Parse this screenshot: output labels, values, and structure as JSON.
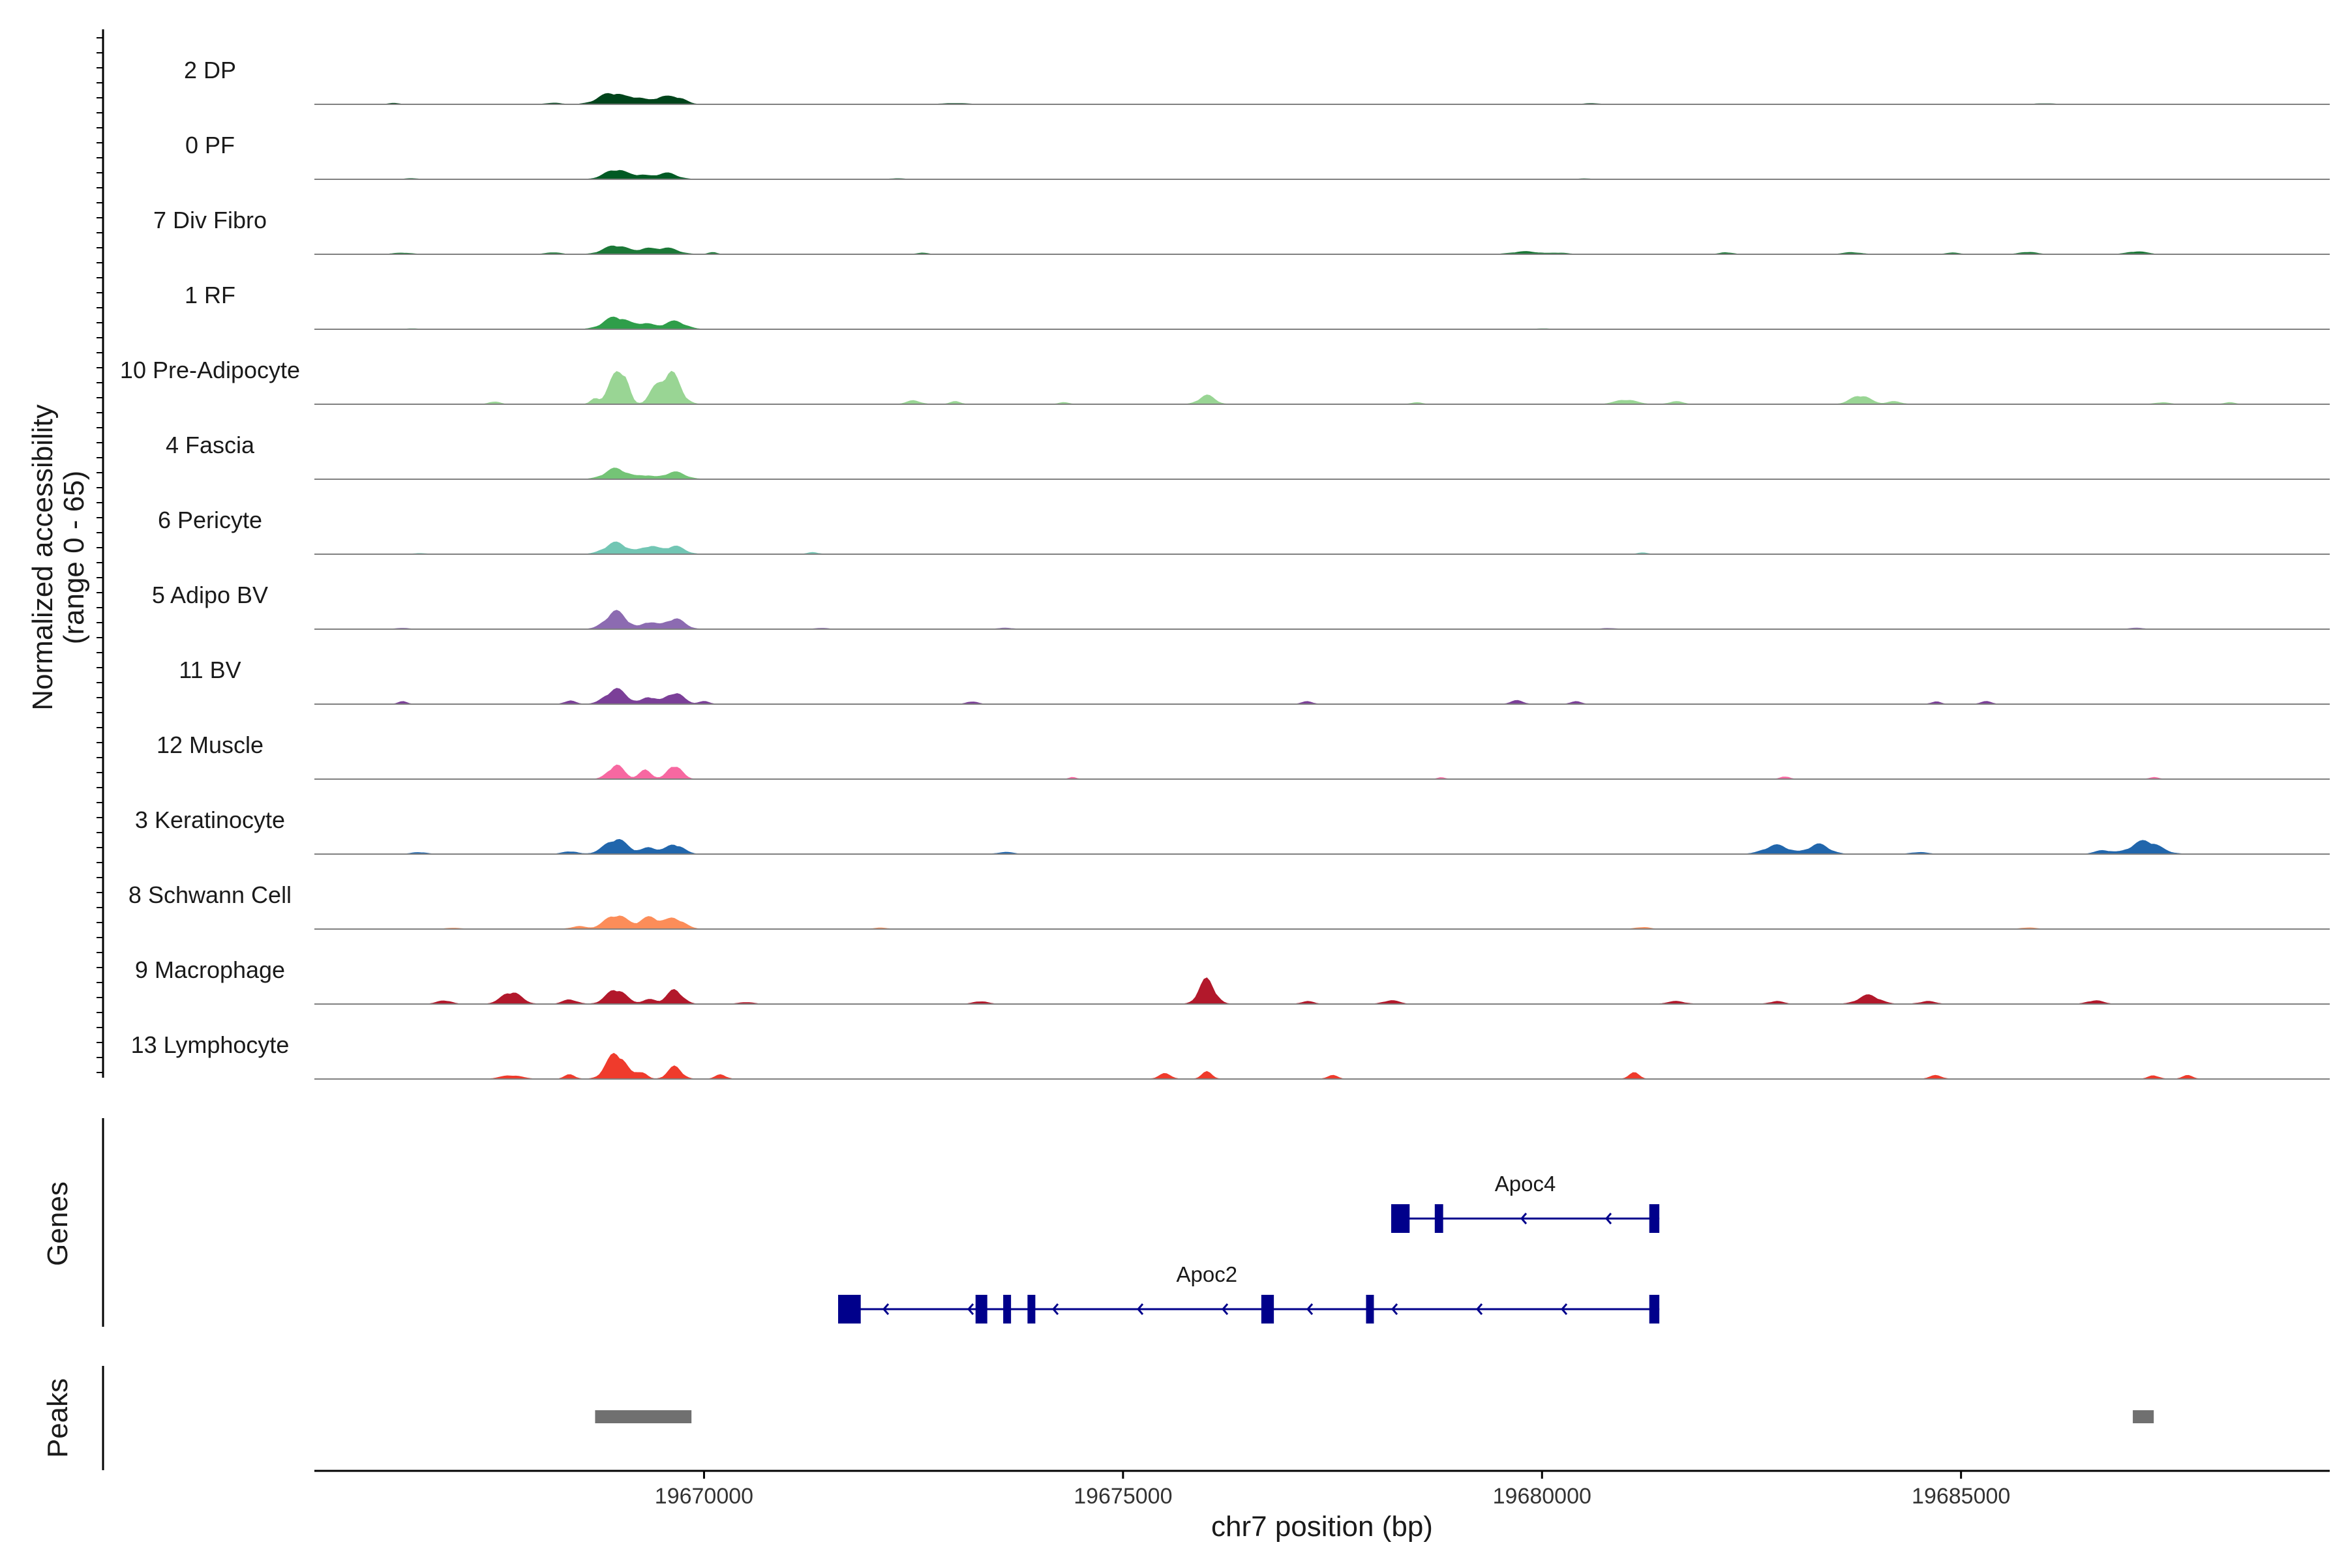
{
  "chart_data": {
    "type": "area",
    "title": "",
    "xlabel": "chr7 position (bp)",
    "ylabel": "Normalized accessibility",
    "ylabel_range": "(range 0 - 65)",
    "xlim": [
      19665350,
      19689400
    ],
    "ylim": [
      0,
      65
    ],
    "x_ticks": [
      19670000,
      19675000,
      19680000,
      19685000
    ],
    "x_tick_labels": [
      "19670000",
      "19675000",
      "19680000",
      "19685000"
    ],
    "tracks": [
      {
        "name": "2 DP",
        "color": "#00441b",
        "peaks": [
          [
            19668900,
            13,
            150
          ],
          [
            19669200,
            6,
            90
          ],
          [
            19669500,
            8,
            120
          ],
          [
            19669700,
            6,
            90
          ],
          [
            19666300,
            1.2,
            60
          ],
          [
            19668200,
            1.5,
            80
          ],
          [
            19673000,
            1,
            150
          ],
          [
            19680600,
            1,
            80
          ],
          [
            19686000,
            0.8,
            100
          ]
        ]
      },
      {
        "name": "0 PF",
        "color": "#005a24",
        "peaks": [
          [
            19668950,
            11,
            130
          ],
          [
            19669250,
            4,
            90
          ],
          [
            19669550,
            7,
            120
          ],
          [
            19666500,
            0.8,
            80
          ],
          [
            19672300,
            0.8,
            80
          ],
          [
            19680500,
            0.6,
            80
          ]
        ]
      },
      {
        "name": "7 Div Fibro",
        "color": "#1b7837",
        "peaks": [
          [
            19668950,
            10,
            140
          ],
          [
            19669300,
            5,
            90
          ],
          [
            19669550,
            7,
            130
          ],
          [
            19666400,
            1.5,
            100
          ],
          [
            19668200,
            2,
            80
          ],
          [
            19670100,
            2,
            50
          ],
          [
            19672600,
            1.5,
            60
          ],
          [
            19679800,
            3,
            150
          ],
          [
            19680200,
            1.5,
            100
          ],
          [
            19682200,
            2,
            70
          ],
          [
            19683700,
            2,
            100
          ],
          [
            19684900,
            1.5,
            80
          ],
          [
            19685800,
            2.5,
            90
          ],
          [
            19687100,
            3,
            110
          ]
        ]
      },
      {
        "name": "1 RF",
        "color": "#2f9e4a",
        "peaks": [
          [
            19668950,
            14,
            140
          ],
          [
            19669300,
            6,
            100
          ],
          [
            19669650,
            9,
            120
          ],
          [
            19666500,
            0.6,
            80
          ],
          [
            19680000,
            0.6,
            80
          ]
        ]
      },
      {
        "name": "10 Pre-Adipocyte",
        "color": "#99d594",
        "peaks": [
          [
            19668950,
            32,
            90
          ],
          [
            19669050,
            18,
            60
          ],
          [
            19669600,
            36,
            110
          ],
          [
            19669400,
            12,
            70
          ],
          [
            19668700,
            6,
            50
          ],
          [
            19667500,
            3,
            60
          ],
          [
            19672500,
            4,
            80
          ],
          [
            19673000,
            3,
            60
          ],
          [
            19676000,
            10,
            90
          ],
          [
            19681000,
            5,
            120
          ],
          [
            19681600,
            3,
            80
          ],
          [
            19683800,
            10,
            110
          ],
          [
            19684200,
            3,
            80
          ],
          [
            19687400,
            2,
            80
          ],
          [
            19688200,
            2,
            60
          ],
          [
            19674300,
            2,
            60
          ],
          [
            19678500,
            2,
            60
          ]
        ]
      },
      {
        "name": "4 Fascia",
        "color": "#74c476",
        "peaks": [
          [
            19668950,
            12,
            130
          ],
          [
            19669300,
            4,
            90
          ],
          [
            19669650,
            8,
            120
          ]
        ]
      },
      {
        "name": "6 Pericyte",
        "color": "#72c6b4",
        "peaks": [
          [
            19668950,
            13,
            130
          ],
          [
            19669350,
            9,
            100
          ],
          [
            19669650,
            9,
            110
          ],
          [
            19671300,
            2,
            60
          ],
          [
            19681200,
            1.5,
            60
          ],
          [
            19666600,
            0.8,
            80
          ]
        ]
      },
      {
        "name": "5 Adipo BV",
        "color": "#8c6bb1",
        "peaks": [
          [
            19668950,
            20,
            120
          ],
          [
            19669350,
            8,
            80
          ],
          [
            19669650,
            12,
            110
          ],
          [
            19666400,
            1,
            80
          ],
          [
            19671400,
            1.2,
            70
          ],
          [
            19673600,
            1.2,
            80
          ],
          [
            19680800,
            1,
            80
          ],
          [
            19687100,
            1.2,
            80
          ]
        ]
      },
      {
        "name": "11 BV",
        "color": "#7b3f98",
        "peaks": [
          [
            19668950,
            17,
            120
          ],
          [
            19669350,
            8,
            80
          ],
          [
            19669650,
            13,
            100
          ],
          [
            19668400,
            4,
            60
          ],
          [
            19670000,
            3,
            60
          ],
          [
            19666400,
            3,
            50
          ],
          [
            19673200,
            3,
            60
          ],
          [
            19677200,
            3,
            60
          ],
          [
            19679700,
            4,
            70
          ],
          [
            19680400,
            3,
            60
          ],
          [
            19684700,
            3,
            50
          ],
          [
            19685300,
            3,
            60
          ]
        ]
      },
      {
        "name": "12 Muscle",
        "color": "#f768a1",
        "peaks": [
          [
            19668950,
            16,
            90
          ],
          [
            19669300,
            10,
            70
          ],
          [
            19669650,
            16,
            80
          ],
          [
            19674400,
            2,
            40
          ],
          [
            19678800,
            2,
            40
          ],
          [
            19682900,
            3,
            50
          ],
          [
            19687300,
            2,
            50
          ]
        ]
      },
      {
        "name": "3 Keratinocyte",
        "color": "#2166ac",
        "peaks": [
          [
            19668950,
            17,
            130
          ],
          [
            19669350,
            7,
            90
          ],
          [
            19669650,
            11,
            100
          ],
          [
            19668400,
            3,
            80
          ],
          [
            19666600,
            2,
            80
          ],
          [
            19673600,
            2,
            90
          ],
          [
            19682800,
            10,
            140
          ],
          [
            19683300,
            11,
            120
          ],
          [
            19687200,
            15,
            160
          ],
          [
            19686700,
            4,
            100
          ],
          [
            19684500,
            2,
            90
          ]
        ]
      },
      {
        "name": "8 Schwann Cell",
        "color": "#fc8d59",
        "peaks": [
          [
            19668950,
            16,
            130
          ],
          [
            19669350,
            13,
            110
          ],
          [
            19669650,
            12,
            110
          ],
          [
            19668500,
            3,
            80
          ],
          [
            19667000,
            1,
            100
          ],
          [
            19672100,
            1.2,
            80
          ],
          [
            19681200,
            2,
            80
          ],
          [
            19685800,
            1.5,
            80
          ]
        ]
      },
      {
        "name": "9 Macrophage",
        "color": "#b2182b",
        "peaks": [
          [
            19668950,
            17,
            110
          ],
          [
            19669650,
            16,
            90
          ],
          [
            19669350,
            5,
            80
          ],
          [
            19667700,
            14,
            110
          ],
          [
            19668400,
            5,
            80
          ],
          [
            19666900,
            4,
            80
          ],
          [
            19676000,
            28,
            90
          ],
          [
            19673300,
            3,
            80
          ],
          [
            19677200,
            3,
            70
          ],
          [
            19678200,
            4,
            90
          ],
          [
            19681600,
            3,
            100
          ],
          [
            19682800,
            3,
            80
          ],
          [
            19683900,
            10,
            120
          ],
          [
            19684600,
            3,
            90
          ],
          [
            19686600,
            4,
            90
          ],
          [
            19670500,
            2,
            80
          ]
        ]
      },
      {
        "name": "13 Lymphocyte",
        "color": "#ef3b2c",
        "peaks": [
          [
            19668950,
            30,
            110
          ],
          [
            19669250,
            8,
            60
          ],
          [
            19669650,
            14,
            80
          ],
          [
            19668400,
            5,
            60
          ],
          [
            19667700,
            4,
            120
          ],
          [
            19670200,
            5,
            60
          ],
          [
            19675500,
            6,
            70
          ],
          [
            19676000,
            8,
            60
          ],
          [
            19677500,
            4,
            60
          ],
          [
            19681100,
            7,
            60
          ],
          [
            19684700,
            4,
            70
          ],
          [
            19687300,
            4,
            60
          ],
          [
            19687700,
            4,
            60
          ]
        ]
      }
    ],
    "genes": [
      {
        "name": "Apoc4",
        "strand": "-",
        "start": 19678200,
        "end": 19681400,
        "exons": [
          [
            19678200,
            19678420
          ],
          [
            19678720,
            19678820
          ],
          [
            19681280,
            19681400
          ]
        ]
      },
      {
        "name": "Apoc2",
        "strand": "-",
        "start": 19671600,
        "end": 19681400,
        "exons": [
          [
            19671600,
            19671870
          ],
          [
            19673240,
            19673380
          ],
          [
            19673570,
            19673640
          ],
          [
            19673860,
            19673930
          ],
          [
            19676650,
            19676800
          ],
          [
            19677900,
            19677980
          ],
          [
            19681280,
            19681400
          ]
        ]
      }
    ],
    "peaks_track": [
      [
        19668700,
        19669850
      ],
      [
        19687050,
        19687300
      ]
    ],
    "track_label_genes": "Genes",
    "track_label_peaks": "Peaks"
  }
}
